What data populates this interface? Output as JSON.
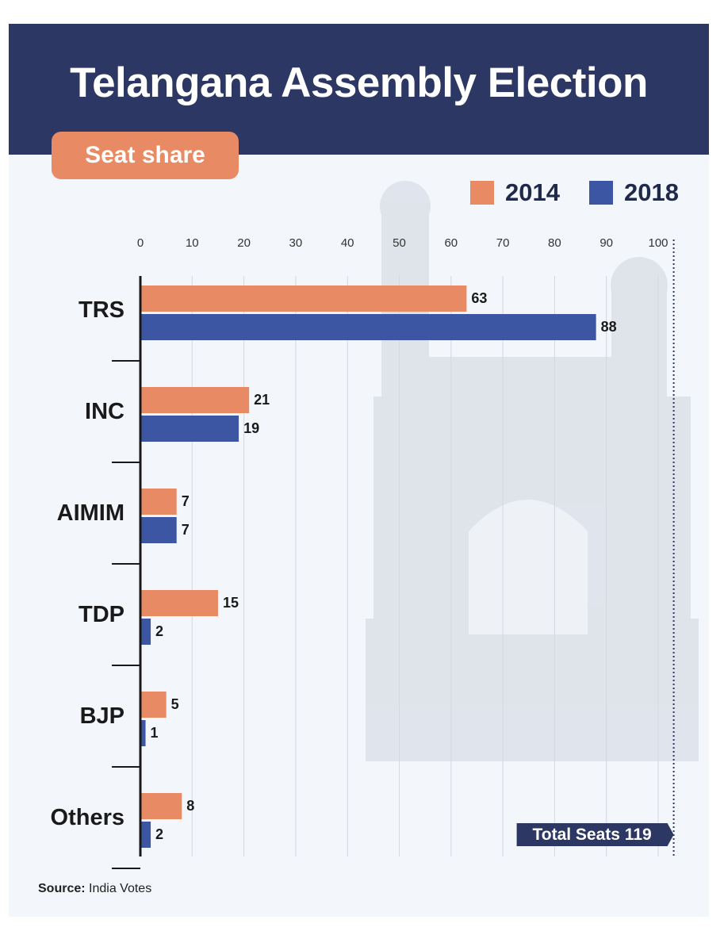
{
  "header": {
    "title": "Telangana Assembly Election"
  },
  "badge": {
    "label": "Seat share"
  },
  "legend": [
    {
      "label": "2014",
      "color": "#e88a64"
    },
    {
      "label": "2018",
      "color": "#3c56a3"
    }
  ],
  "source": {
    "label": "Source:",
    "value": "India Votes"
  },
  "annotation": {
    "label": "Total Seats 119"
  },
  "chart_data": {
    "type": "bar",
    "orientation": "horizontal",
    "categories": [
      "TRS",
      "INC",
      "AIMIM",
      "TDP",
      "BJP",
      "Others"
    ],
    "series": [
      {
        "name": "2014",
        "color": "#e88a64",
        "values": [
          63,
          21,
          7,
          15,
          5,
          8
        ]
      },
      {
        "name": "2018",
        "color": "#3c56a3",
        "values": [
          88,
          19,
          7,
          2,
          1,
          2
        ]
      }
    ],
    "x_ticks": [
      0,
      10,
      20,
      30,
      40,
      50,
      60,
      70,
      80,
      90,
      100
    ],
    "xlim": [
      0,
      103
    ],
    "reference_line": {
      "value": 103,
      "style": "dotted"
    },
    "grid": true,
    "legend_position": "top-right"
  }
}
